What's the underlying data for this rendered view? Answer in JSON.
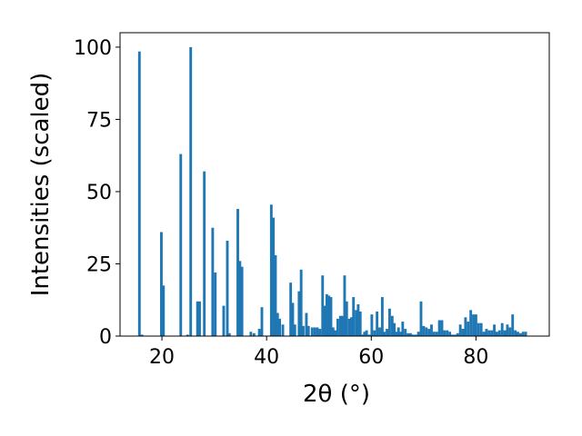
{
  "chart_data": {
    "type": "bar",
    "title": "",
    "xlabel": "2θ (°)",
    "ylabel": "Intensities (scaled)",
    "xlim": [
      12,
      94
    ],
    "ylim": [
      0,
      105
    ],
    "xticks": [
      20,
      40,
      60,
      80
    ],
    "yticks": [
      0,
      25,
      50,
      75,
      100
    ],
    "bar_width": 0.5,
    "color": "#1f77b4",
    "grid": false,
    "legend": "none",
    "x": [
      15.7,
      16.2,
      19.9,
      20.3,
      23.6,
      24.9,
      25.5,
      26.8,
      27.2,
      28.1,
      29.7,
      30.2,
      31.8,
      32.5,
      32.9,
      34.5,
      34.9,
      35.3,
      37.0,
      37.6,
      38.6,
      39.1,
      40.9,
      41.3,
      41.7,
      42.1,
      42.5,
      43.1,
      44.6,
      45.0,
      45.4,
      46.2,
      46.6,
      47.0,
      47.6,
      48.0,
      48.7,
      49.2,
      49.7,
      50.2,
      50.7,
      51.1,
      51.5,
      51.9,
      52.3,
      52.7,
      53.1,
      53.6,
      54.1,
      54.5,
      54.9,
      55.3,
      55.8,
      56.2,
      56.6,
      57.1,
      57.5,
      57.9,
      58.3,
      58.7,
      59.1,
      59.6,
      60.1,
      60.6,
      61.1,
      61.6,
      62.1,
      62.5,
      63.0,
      63.5,
      64.0,
      64.4,
      64.8,
      65.2,
      65.6,
      66.0,
      66.5,
      67.0,
      67.5,
      68.0,
      68.5,
      69.0,
      69.5,
      70.0,
      70.5,
      71.0,
      71.5,
      72.0,
      72.5,
      73.0,
      73.5,
      74.0,
      74.5,
      75.0,
      75.5,
      76.0,
      76.5,
      77.0,
      77.5,
      78.0,
      78.5,
      79.0,
      79.5,
      80.0,
      80.5,
      81.0,
      81.5,
      82.0,
      82.5,
      83.0,
      83.5,
      84.0,
      84.5,
      85.0,
      85.5,
      86.0,
      86.5,
      87.0,
      87.5,
      88.0,
      88.5,
      89.0,
      89.5
    ],
    "values": [
      98.5,
      0.5,
      36,
      17.5,
      63,
      0.5,
      100,
      12,
      12,
      57,
      37.5,
      22,
      10.5,
      33,
      1,
      44,
      26,
      24,
      1.5,
      1,
      2.5,
      10,
      45.5,
      41,
      28,
      8,
      6,
      4,
      18.5,
      11.5,
      4,
      15.5,
      23,
      3.5,
      8,
      3.5,
      3,
      3,
      3,
      2.5,
      21,
      10.5,
      14.5,
      14,
      13.5,
      3,
      2,
      6,
      7,
      7,
      21,
      12,
      6,
      6.5,
      13.5,
      9,
      11,
      8.5,
      0.5,
      1.5,
      2,
      0.5,
      7.5,
      2,
      8.5,
      3,
      13.5,
      1.5,
      2.5,
      9.5,
      7,
      4.5,
      1.5,
      3,
      1.5,
      5,
      2.5,
      1,
      1,
      0.5,
      0.5,
      1.5,
      12,
      3.5,
      3,
      2.5,
      4,
      1.5,
      1.5,
      5.5,
      5.5,
      2,
      2,
      1.5,
      0.5,
      0.5,
      1,
      4,
      2.5,
      6.5,
      5,
      9,
      7.5,
      7.5,
      4.5,
      4.5,
      1.5,
      2.5,
      2,
      2,
      4,
      1.5,
      2,
      4.5,
      2,
      4,
      3,
      7.5,
      2,
      1.5,
      1,
      1.5,
      1.5
    ]
  }
}
